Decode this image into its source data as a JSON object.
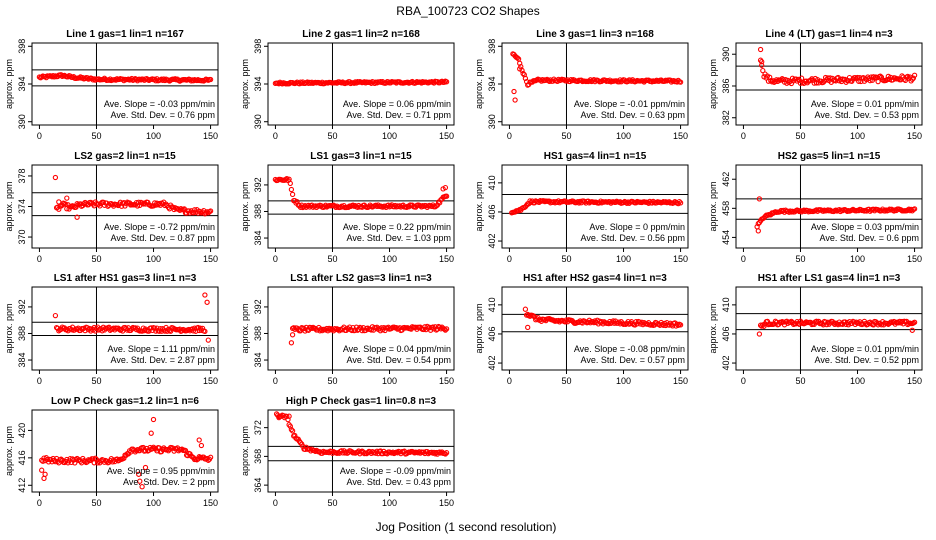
{
  "figure": {
    "title": "RBA_100723  CO2 Shapes",
    "xlabel": "Jog Position (1 second resolution)"
  },
  "colors": {
    "points": "#ff0000",
    "axes": "#000000"
  },
  "chart_data": [
    {
      "type": "scatter",
      "title": "Line 1 gas=1 lin=1 n=167",
      "ylabel": "approx. ppm",
      "xlim": [
        0,
        150
      ],
      "ylim": [
        390,
        398
      ],
      "yticks": [
        390,
        394,
        398
      ],
      "xticks": [
        0,
        50,
        100,
        150
      ],
      "vline": 50,
      "hlines": [
        393.8,
        395.5
      ],
      "slope": "Ave. Slope = -0.03 ppm/min",
      "stddev": "Ave. Std. Dev. = 0.76 ppm",
      "segments": [
        [
          0,
          394.7
        ],
        [
          20,
          394.9
        ],
        [
          30,
          394.7
        ],
        [
          50,
          394.5
        ],
        [
          150,
          394.4
        ]
      ],
      "noise": 0.12,
      "outliers": []
    },
    {
      "type": "scatter",
      "title": "Line 2 gas=1 lin=2 n=168",
      "ylabel": "approx. ppm",
      "xlim": [
        0,
        150
      ],
      "ylim": [
        390,
        398
      ],
      "yticks": [
        390,
        394,
        398
      ],
      "xticks": [
        0,
        50,
        100,
        150
      ],
      "vline": 50,
      "hlines": [],
      "slope": "Ave. Slope = 0.06 ppm/min",
      "stddev": "Ave. Std. Dev. = 0.71 ppm",
      "segments": [
        [
          0,
          394.1
        ],
        [
          150,
          394.2
        ]
      ],
      "noise": 0.1,
      "outliers": []
    },
    {
      "type": "scatter",
      "title": "Line 3 gas=1 lin=3 n=168",
      "ylabel": "approx. ppm",
      "xlim": [
        0,
        150
      ],
      "ylim": [
        390,
        398
      ],
      "yticks": [
        390,
        394,
        398
      ],
      "xticks": [
        0,
        50,
        100,
        150
      ],
      "vline": 50,
      "hlines": [],
      "slope": "Ave. Slope = -0.01 ppm/min",
      "stddev": "Ave. Std. Dev. = 0.63 ppm",
      "segments": [
        [
          3,
          397.2
        ],
        [
          8,
          396.6
        ],
        [
          12,
          395.2
        ],
        [
          16,
          394.0
        ],
        [
          25,
          394.4
        ],
        [
          150,
          394.3
        ]
      ],
      "noise": 0.12,
      "outliers": [
        [
          4,
          393.2
        ],
        [
          5,
          392.3
        ],
        [
          9,
          395.6
        ]
      ]
    },
    {
      "type": "scatter",
      "title": "Line 4 (LT) gas=1 lin=4 n=3",
      "ylabel": "approx. ppm",
      "xlim": [
        0,
        150
      ],
      "ylim": [
        381.5,
        391
      ],
      "yticks": [
        382,
        386,
        390
      ],
      "xticks": [
        0,
        50,
        100,
        150
      ],
      "vline": 50,
      "hlines": [
        385.5,
        388.5
      ],
      "slope": "Ave. Slope = 0.01 ppm/min",
      "stddev": "Ave. Std. Dev. = 0.53 ppm",
      "segments": [
        [
          15,
          389.5
        ],
        [
          18,
          387.5
        ],
        [
          22,
          386.8
        ],
        [
          30,
          386.6
        ],
        [
          150,
          387.0
        ]
      ],
      "noise": 0.35,
      "outliers": [
        [
          15,
          390.6
        ],
        [
          16,
          388.6
        ]
      ]
    },
    {
      "type": "scatter",
      "title": "LS2 gas=2 lin=1 n=15",
      "ylabel": "approx. ppm",
      "xlim": [
        0,
        150
      ],
      "ylim": [
        369,
        379
      ],
      "yticks": [
        370,
        374,
        378
      ],
      "xticks": [
        0,
        50,
        100,
        150
      ],
      "vline": 50,
      "hlines": [
        372.8,
        375.8
      ],
      "slope": "Ave. Slope = -0.72 ppm/min",
      "stddev": "Ave. Std. Dev. = 0.87 ppm",
      "segments": [
        [
          15,
          373.6
        ],
        [
          20,
          374.2
        ],
        [
          28,
          373.8
        ],
        [
          35,
          374.2
        ],
        [
          45,
          374.3
        ],
        [
          110,
          374.3
        ],
        [
          120,
          373.5
        ],
        [
          150,
          373.3
        ]
      ],
      "noise": 0.3,
      "outliers": [
        [
          14,
          377.8
        ],
        [
          17,
          374.6
        ],
        [
          24,
          375.1
        ],
        [
          33,
          372.6
        ]
      ]
    },
    {
      "type": "scatter",
      "title": "LS1 gas=3 lin=1 n=15",
      "ylabel": "approx. ppm",
      "xlim": [
        0,
        150
      ],
      "ylim": [
        383,
        394.5
      ],
      "yticks": [
        384,
        388,
        392
      ],
      "xticks": [
        0,
        50,
        100,
        150
      ],
      "vline": 50,
      "hlines": [
        387.6,
        389.6
      ],
      "slope": "Ave. Slope = 0.22 ppm/min",
      "stddev": "Ave. Std. Dev. = 1.03 ppm",
      "segments": [
        [
          0,
          392.8
        ],
        [
          12,
          392.8
        ],
        [
          16,
          389.8
        ],
        [
          22,
          388.8
        ],
        [
          140,
          388.8
        ],
        [
          150,
          390.5
        ]
      ],
      "noise": 0.2,
      "outliers": [
        [
          147,
          391.4
        ],
        [
          149,
          391.6
        ]
      ]
    },
    {
      "type": "scatter",
      "title": "HS1 gas=4 lin=1 n=15",
      "ylabel": "approx. ppm",
      "xlim": [
        0,
        150
      ],
      "ylim": [
        401.5,
        412
      ],
      "yticks": [
        402,
        406,
        410
      ],
      "xticks": [
        0,
        50,
        100,
        150
      ],
      "vline": 50,
      "hlines": [
        405.8,
        408.4
      ],
      "slope": "Ave. Slope = 0 ppm/min",
      "stddev": "Ave. Std. Dev. = 0.56 ppm",
      "segments": [
        [
          2,
          406.0
        ],
        [
          10,
          406.3
        ],
        [
          18,
          407.4
        ],
        [
          150,
          407.3
        ]
      ],
      "noise": 0.15,
      "outliers": []
    },
    {
      "type": "scatter",
      "title": "HS2 gas=5 lin=1 n=15",
      "ylabel": "approx. ppm",
      "xlim": [
        0,
        150
      ],
      "ylim": [
        453,
        463.5
      ],
      "yticks": [
        454,
        458,
        462
      ],
      "xticks": [
        0,
        50,
        100,
        150
      ],
      "vline": 50,
      "hlines": [
        456.5,
        459.3
      ],
      "slope": "Ave. Slope = 0.03 ppm/min",
      "stddev": "Ave. Std. Dev. = 0.6 ppm",
      "segments": [
        [
          12,
          455.6
        ],
        [
          18,
          456.8
        ],
        [
          30,
          457.6
        ],
        [
          150,
          457.8
        ]
      ],
      "noise": 0.15,
      "outliers": [
        [
          14,
          459.3
        ],
        [
          13,
          454.9
        ]
      ]
    },
    {
      "type": "scatter",
      "title": "LS1 after HS1 gas=3 lin=1 n=3",
      "ylabel": "approx. ppm",
      "xlim": [
        0,
        150
      ],
      "ylim": [
        383,
        394.5
      ],
      "yticks": [
        384,
        388,
        392
      ],
      "xticks": [
        0,
        50,
        100,
        150
      ],
      "vline": 50,
      "hlines": [
        387.7,
        389.7
      ],
      "slope": "Ave. Slope = 1.11 ppm/min",
      "stddev": "Ave. Std. Dev. = 2.87 ppm",
      "segments": [
        [
          15,
          388.7
        ],
        [
          145,
          388.6
        ]
      ],
      "noise": 0.3,
      "outliers": [
        [
          14,
          390.7
        ],
        [
          145,
          393.8
        ],
        [
          147,
          392.7
        ],
        [
          148,
          387.0
        ]
      ]
    },
    {
      "type": "scatter",
      "title": "LS1 after LS2 gas=3 lin=1 n=3",
      "ylabel": "approx. ppm",
      "xlim": [
        0,
        150
      ],
      "ylim": [
        383,
        394.5
      ],
      "yticks": [
        384,
        388,
        392
      ],
      "xticks": [
        0,
        50,
        100,
        150
      ],
      "vline": 50,
      "hlines": [],
      "slope": "Ave. Slope = 0.04 ppm/min",
      "stddev": "Ave. Std. Dev. = 0.54 ppm",
      "segments": [
        [
          15,
          388.6
        ],
        [
          150,
          388.8
        ]
      ],
      "noise": 0.3,
      "outliers": [
        [
          14,
          386.6
        ],
        [
          15,
          387.8
        ]
      ]
    },
    {
      "type": "scatter",
      "title": "HS1 after HS2 gas=4 lin=1 n=3",
      "ylabel": "approx. ppm",
      "xlim": [
        0,
        150
      ],
      "ylim": [
        401.5,
        412
      ],
      "yticks": [
        402,
        406,
        410
      ],
      "xticks": [
        0,
        50,
        100,
        150
      ],
      "vline": 50,
      "hlines": [
        406.3,
        408.7
      ],
      "slope": "Ave. Slope = -0.08 ppm/min",
      "stddev": "Ave. Std. Dev. = 0.57 ppm",
      "segments": [
        [
          15,
          408.8
        ],
        [
          25,
          408.0
        ],
        [
          40,
          407.8
        ],
        [
          150,
          407.3
        ]
      ],
      "noise": 0.25,
      "outliers": [
        [
          14,
          409.4
        ],
        [
          16,
          406.9
        ]
      ]
    },
    {
      "type": "scatter",
      "title": "HS1 after LS1 gas=4 lin=1 n=3",
      "ylabel": "approx. ppm",
      "xlim": [
        0,
        150
      ],
      "ylim": [
        401.5,
        412
      ],
      "yticks": [
        402,
        406,
        410
      ],
      "xticks": [
        0,
        50,
        100,
        150
      ],
      "vline": 50,
      "hlines": [
        406.6,
        408.8
      ],
      "slope": "Ave. Slope = 0.01 ppm/min",
      "stddev": "Ave. Std. Dev. = 0.52 ppm",
      "segments": [
        [
          15,
          407.0
        ],
        [
          20,
          407.5
        ],
        [
          150,
          407.5
        ]
      ],
      "noise": 0.25,
      "outliers": [
        [
          14,
          406.0
        ],
        [
          148,
          406.5
        ]
      ]
    },
    {
      "type": "scatter",
      "title": "Low P Check gas=1.2 lin=1 n=6",
      "ylabel": "approx. ppm",
      "xlim": [
        0,
        150
      ],
      "ylim": [
        411.5,
        422.5
      ],
      "yticks": [
        412,
        416,
        420
      ],
      "xticks": [
        0,
        50,
        100,
        150
      ],
      "vline": 50,
      "hlines": [],
      "slope": "Ave. Slope = 0.95 ppm/min",
      "stddev": "Ave. Std. Dev. = 2 ppm",
      "segments": [
        [
          2,
          415.8
        ],
        [
          10,
          415.6
        ],
        [
          70,
          415.6
        ],
        [
          80,
          417.2
        ],
        [
          125,
          417.2
        ],
        [
          135,
          416.0
        ],
        [
          150,
          415.8
        ]
      ],
      "noise": 0.35,
      "outliers": [
        [
          2,
          414.2
        ],
        [
          4,
          413.0
        ],
        [
          5,
          413.6
        ],
        [
          87,
          413.6
        ],
        [
          88,
          412.6
        ],
        [
          90,
          411.8
        ],
        [
          93,
          414.6
        ],
        [
          98,
          419.6
        ],
        [
          100,
          421.6
        ],
        [
          140,
          418.6
        ],
        [
          142,
          417.8
        ]
      ]
    },
    {
      "type": "scatter",
      "title": "High P Check gas=1 lin=0.8 n=3",
      "ylabel": "approx. ppm",
      "xlim": [
        0,
        150
      ],
      "ylim": [
        363.5,
        374
      ],
      "yticks": [
        364,
        368,
        372
      ],
      "xticks": [
        0,
        50,
        100,
        150
      ],
      "vline": 50,
      "hlines": [
        367.4,
        369.4
      ],
      "slope": "Ave. Slope = -0.09 ppm/min",
      "stddev": "Ave. Std. Dev. = 0.43 ppm",
      "segments": [
        [
          1,
          373.8
        ],
        [
          10,
          373.4
        ],
        [
          16,
          371.0
        ],
        [
          25,
          369.2
        ],
        [
          40,
          368.6
        ],
        [
          150,
          368.5
        ]
      ],
      "noise": 0.2,
      "outliers": [
        [
          3,
          373.4
        ],
        [
          12,
          373.6
        ]
      ]
    }
  ]
}
